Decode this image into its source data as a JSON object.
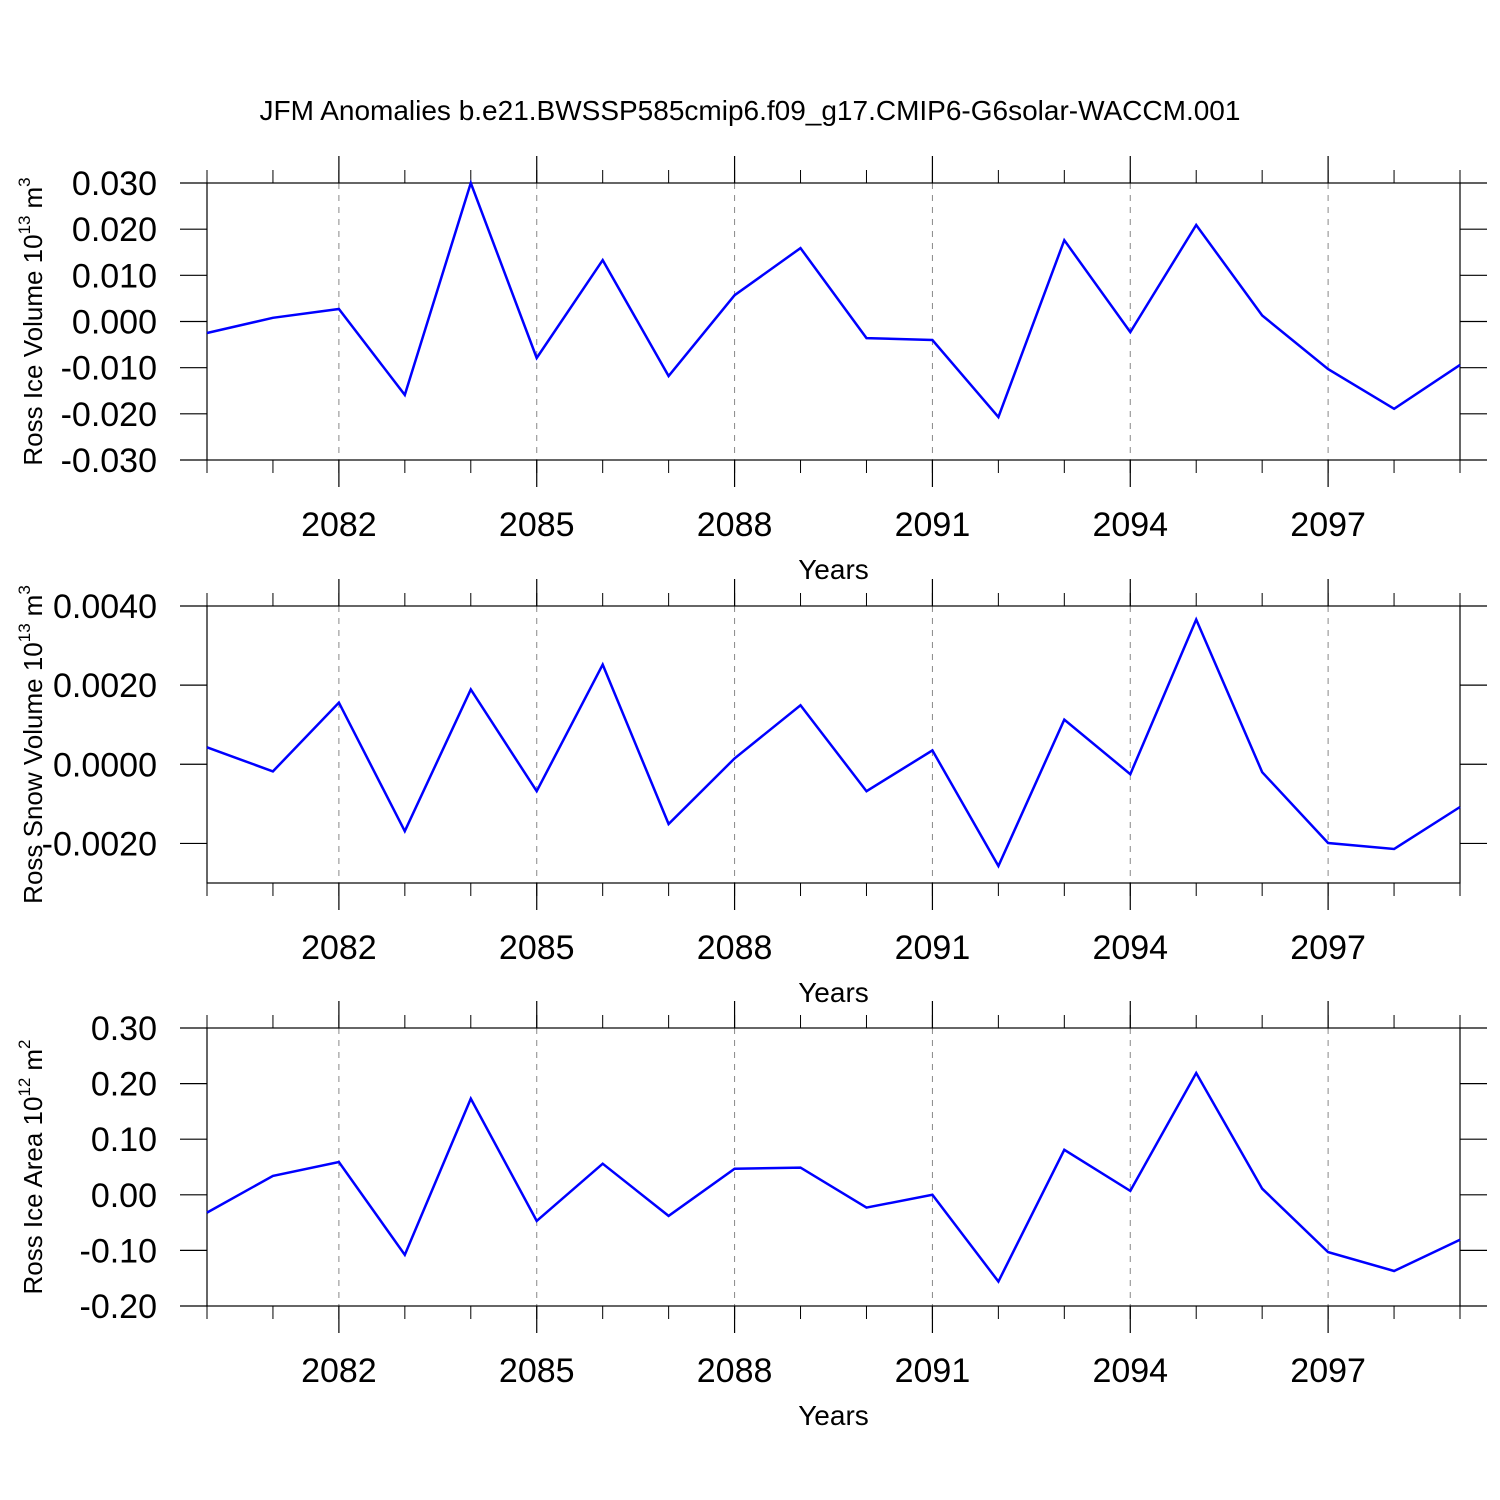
{
  "chart_data": [
    {
      "type": "line",
      "title": "JFM Anomalies b.e21.BWSSP585cmip6.f09_g17.CMIP6-G6solar-WACCM.001",
      "xlabel": "Years",
      "ylabel": [
        "Ross Ice Volume 10",
        "13",
        "m",
        "3"
      ],
      "x": [
        2080,
        2081,
        2082,
        2083,
        2084,
        2085,
        2086,
        2087,
        2088,
        2089,
        2090,
        2091,
        2092,
        2093,
        2094,
        2095,
        2096,
        2097,
        2098,
        2099
      ],
      "values": [
        -0.0025,
        0.0008,
        0.0027,
        -0.0159,
        0.03,
        -0.0079,
        0.0133,
        -0.0118,
        0.0057,
        0.0159,
        -0.0036,
        -0.004,
        -0.0207,
        0.0176,
        -0.0023,
        0.0209,
        0.0013,
        -0.0103,
        -0.0189,
        -0.0094
      ],
      "color": "#0000ff",
      "xlim": [
        2080,
        2099
      ],
      "xticks": [
        2082,
        2085,
        2088,
        2091,
        2094,
        2097
      ],
      "grid": true,
      "ylim": [
        -0.03,
        0.03
      ],
      "yticks": [
        {
          "value": 0.03,
          "label": "0.030"
        },
        {
          "value": 0.02,
          "label": "0.020"
        },
        {
          "value": 0.01,
          "label": "0.010"
        },
        {
          "value": 0,
          "label": "0.000"
        },
        {
          "value": -0.01,
          "label": "-0.010"
        },
        {
          "value": -0.02,
          "label": "-0.020"
        },
        {
          "value": -0.03,
          "label": "-0.030"
        }
      ]
    },
    {
      "type": "line",
      "xlabel": "Years",
      "ylabel": [
        "Ross Snow Volume 10",
        "13",
        "m",
        "3"
      ],
      "x": [
        2080,
        2081,
        2082,
        2083,
        2084,
        2085,
        2086,
        2087,
        2088,
        2089,
        2090,
        2091,
        2092,
        2093,
        2094,
        2095,
        2096,
        2097,
        2098,
        2099
      ],
      "values": [
        0.00043,
        -0.00018,
        0.00156,
        -0.00169,
        0.00189,
        -0.00068,
        0.00252,
        -0.00151,
        0.00015,
        0.00149,
        -0.00068,
        0.00035,
        -0.00257,
        0.00113,
        -0.00025,
        0.00366,
        -0.0002,
        -0.00199,
        -0.00214,
        -0.00108
      ],
      "color": "#0000ff",
      "xlim": [
        2080,
        2099
      ],
      "xticks": [
        2082,
        2085,
        2088,
        2091,
        2094,
        2097
      ],
      "grid": true,
      "ylim": [
        -0.003,
        0.004
      ],
      "yticks": [
        {
          "value": 0.004,
          "label": "0.0040"
        },
        {
          "value": 0.002,
          "label": "0.0020"
        },
        {
          "value": 0,
          "label": "0.0000"
        },
        {
          "value": -0.002,
          "label": "-0.0020"
        }
      ]
    },
    {
      "type": "line",
      "xlabel": "Years",
      "ylabel": [
        "Ross Ice Area 10",
        "12",
        "m",
        "2"
      ],
      "x": [
        2080,
        2081,
        2082,
        2083,
        2084,
        2085,
        2086,
        2087,
        2088,
        2089,
        2090,
        2091,
        2092,
        2093,
        2094,
        2095,
        2096,
        2097,
        2098,
        2099
      ],
      "values": [
        -0.032,
        0.034,
        0.059,
        -0.108,
        0.173,
        -0.047,
        0.056,
        -0.038,
        0.047,
        0.049,
        -0.023,
        0.0,
        -0.156,
        0.081,
        0.007,
        0.219,
        0.011,
        -0.103,
        -0.137,
        -0.081
      ],
      "color": "#0000ff",
      "xlim": [
        2080,
        2099
      ],
      "xticks": [
        2082,
        2085,
        2088,
        2091,
        2094,
        2097
      ],
      "grid": true,
      "ylim": [
        -0.2,
        0.3
      ],
      "yticks": [
        {
          "value": 0.3,
          "label": "0.30"
        },
        {
          "value": 0.2,
          "label": "0.20"
        },
        {
          "value": 0.1,
          "label": "0.10"
        },
        {
          "value": 0,
          "label": "0.00"
        },
        {
          "value": -0.1,
          "label": "-0.10"
        },
        {
          "value": -0.2,
          "label": "-0.20"
        }
      ]
    }
  ]
}
